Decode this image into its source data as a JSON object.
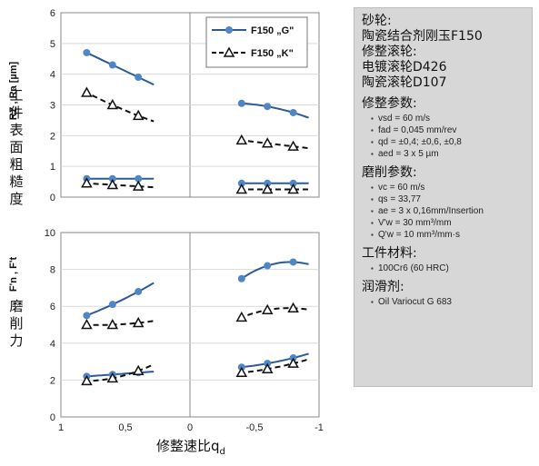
{
  "chart_data": [
    {
      "type": "line",
      "panel": "top-left",
      "xlim": [
        1,
        0
      ],
      "ylim": [
        0,
        6
      ],
      "yticks": [
        "0",
        "1",
        "2",
        "3",
        "4",
        "5",
        "6"
      ],
      "series": [
        {
          "name": "F150 „G\"",
          "marker": "circle",
          "x": [
            0.8,
            0.6,
            0.4
          ],
          "y": [
            4.7,
            4.3,
            3.9
          ]
        },
        {
          "name": "F150 „K\"",
          "marker": "triangle",
          "x": [
            0.8,
            0.6,
            0.4
          ],
          "y": [
            3.4,
            3.0,
            2.65
          ]
        },
        {
          "marker": "circle",
          "x": [
            0.8,
            0.6,
            0.4
          ],
          "y": [
            0.6,
            0.6,
            0.6
          ]
        },
        {
          "marker": "triangle",
          "x": [
            0.8,
            0.6,
            0.4
          ],
          "y": [
            0.45,
            0.4,
            0.35
          ]
        }
      ]
    },
    {
      "type": "line",
      "panel": "top-right",
      "xlim": [
        0,
        -1
      ],
      "ylim": [
        0,
        6
      ],
      "series": [
        {
          "name": "F150 „G\"",
          "marker": "circle",
          "x": [
            -0.4,
            -0.6,
            -0.8
          ],
          "y": [
            3.05,
            2.95,
            2.75
          ]
        },
        {
          "name": "F150 „K\"",
          "marker": "triangle",
          "x": [
            -0.4,
            -0.6,
            -0.8
          ],
          "y": [
            1.85,
            1.75,
            1.65
          ]
        },
        {
          "marker": "circle",
          "x": [
            -0.4,
            -0.6,
            -0.8
          ],
          "y": [
            0.45,
            0.45,
            0.45
          ]
        },
        {
          "marker": "triangle",
          "x": [
            -0.4,
            -0.6,
            -0.8
          ],
          "y": [
            0.25,
            0.25,
            0.25
          ]
        }
      ]
    },
    {
      "type": "line",
      "panel": "bottom-left",
      "xlim": [
        1,
        0
      ],
      "ylim": [
        0,
        10
      ],
      "yticks": [
        "0",
        "2",
        "4",
        "6",
        "8",
        "10"
      ],
      "xticks": [
        "1",
        "0,5",
        "0"
      ],
      "series": [
        {
          "marker": "circle",
          "x": [
            0.8,
            0.6,
            0.4
          ],
          "y": [
            5.5,
            6.1,
            6.8
          ]
        },
        {
          "marker": "triangle",
          "x": [
            0.8,
            0.6,
            0.4
          ],
          "y": [
            5.0,
            5.0,
            5.1
          ]
        },
        {
          "marker": "circle",
          "x": [
            0.8,
            0.6,
            0.4
          ],
          "y": [
            2.2,
            2.3,
            2.4
          ]
        },
        {
          "marker": "triangle",
          "x": [
            0.8,
            0.6,
            0.4
          ],
          "y": [
            1.95,
            2.1,
            2.5
          ]
        }
      ]
    },
    {
      "type": "line",
      "panel": "bottom-right",
      "xlim": [
        0,
        -1
      ],
      "ylim": [
        0,
        10
      ],
      "xticks": [
        "-0,5",
        "-1"
      ],
      "series": [
        {
          "marker": "circle",
          "x": [
            -0.4,
            -0.6,
            -0.8
          ],
          "y": [
            7.5,
            8.2,
            8.4
          ]
        },
        {
          "marker": "triangle",
          "x": [
            -0.4,
            -0.6,
            -0.8
          ],
          "y": [
            5.4,
            5.8,
            5.9
          ]
        },
        {
          "marker": "circle",
          "x": [
            -0.4,
            -0.6,
            -0.8
          ],
          "y": [
            2.7,
            2.9,
            3.2
          ]
        },
        {
          "marker": "triangle",
          "x": [
            -0.4,
            -0.6,
            -0.8
          ],
          "y": [
            2.4,
            2.6,
            2.9
          ]
        }
      ]
    }
  ],
  "labels": {
    "top_ylabel_unit": "RZ , Ra [µm]",
    "top_ylabel_cn": [
      "工",
      "件",
      "表",
      "面",
      "粗",
      "糙",
      "度"
    ],
    "bottom_ylabel_sym": "F'n , F't",
    "bottom_ylabel_cn": [
      "磨",
      "削",
      "力"
    ],
    "xlabel": "修整速比q",
    "xlabel_sub": "d"
  },
  "legend": {
    "g_label": "F150 „G\"",
    "k_label": "F150 „K\""
  },
  "colors": {
    "blue": "#4f86c6",
    "blue_line": "#2d5b9a",
    "black": "#111111"
  },
  "panel": {
    "grinding_wheel_title": "砂轮:",
    "grinding_wheel_value": "陶瓷结合剂刚玉F150",
    "dresser_title": "修整滚轮:",
    "dresser_line1": "电镀滚轮D426",
    "dresser_line2": "陶瓷滚轮D107",
    "dressing_title": "修整参数:",
    "dressing_items": [
      "vsd = 60 m/s",
      "fad = 0,045 mm/rev",
      "qd = ±0,4; ±0,6, ±0,8",
      "aed = 3 x 5 µm"
    ],
    "grinding_title": "磨削参数:",
    "grinding_items": [
      "vc = 60 m/s",
      "qs = 33,77",
      "ae = 3 x 0,16mm/Insertion",
      "V'w = 30 mm³/mm",
      "Q'w = 10 mm³/mm·s"
    ],
    "workpiece_title": "工件材料:",
    "workpiece_items": [
      "100Cr6 (60 HRC)"
    ],
    "lubricant_title": "润滑剂:",
    "lubricant_items": [
      "Oil Variocut G 683"
    ]
  }
}
